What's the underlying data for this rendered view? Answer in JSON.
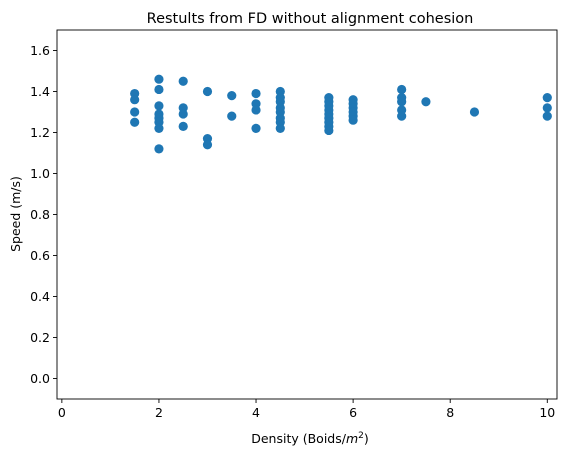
{
  "chart_data": {
    "type": "scatter",
    "title": "Restults from FD without alignment cohesion",
    "xlabel": "Density (Boids/",
    "xlabel_math": "m",
    "xlabel_sup": "2",
    "xlabel_end": ")",
    "ylabel": "Speed (m/s)",
    "xlim": [
      -0.1,
      10.2
    ],
    "ylim": [
      -0.1,
      1.7
    ],
    "xticks": [
      0,
      2,
      4,
      6,
      8,
      10
    ],
    "yticks": [
      0.0,
      0.2,
      0.4,
      0.6,
      0.8,
      1.0,
      1.2,
      1.4,
      1.6
    ],
    "xtick_labels": [
      "0",
      "2",
      "4",
      "6",
      "8",
      "10"
    ],
    "ytick_labels": [
      "0.0",
      "0.2",
      "0.4",
      "0.6",
      "0.8",
      "1.0",
      "1.2",
      "1.4",
      "1.6"
    ],
    "marker_color": "#1f77b4",
    "points": [
      {
        "x": 1.5,
        "y": 1.39
      },
      {
        "x": 1.5,
        "y": 1.36
      },
      {
        "x": 1.5,
        "y": 1.3
      },
      {
        "x": 1.5,
        "y": 1.25
      },
      {
        "x": 2.0,
        "y": 1.46
      },
      {
        "x": 2.0,
        "y": 1.41
      },
      {
        "x": 2.0,
        "y": 1.33
      },
      {
        "x": 2.0,
        "y": 1.29
      },
      {
        "x": 2.0,
        "y": 1.27
      },
      {
        "x": 2.0,
        "y": 1.25
      },
      {
        "x": 2.0,
        "y": 1.22
      },
      {
        "x": 2.0,
        "y": 1.12
      },
      {
        "x": 2.5,
        "y": 1.45
      },
      {
        "x": 2.5,
        "y": 1.32
      },
      {
        "x": 2.5,
        "y": 1.29
      },
      {
        "x": 2.5,
        "y": 1.23
      },
      {
        "x": 3.0,
        "y": 1.4
      },
      {
        "x": 3.0,
        "y": 1.17
      },
      {
        "x": 3.0,
        "y": 1.14
      },
      {
        "x": 3.5,
        "y": 1.38
      },
      {
        "x": 3.5,
        "y": 1.28
      },
      {
        "x": 4.0,
        "y": 1.39
      },
      {
        "x": 4.0,
        "y": 1.34
      },
      {
        "x": 4.0,
        "y": 1.31
      },
      {
        "x": 4.0,
        "y": 1.22
      },
      {
        "x": 4.5,
        "y": 1.4
      },
      {
        "x": 4.5,
        "y": 1.37
      },
      {
        "x": 4.5,
        "y": 1.35
      },
      {
        "x": 4.5,
        "y": 1.32
      },
      {
        "x": 4.5,
        "y": 1.3
      },
      {
        "x": 4.5,
        "y": 1.27
      },
      {
        "x": 4.5,
        "y": 1.25
      },
      {
        "x": 4.5,
        "y": 1.22
      },
      {
        "x": 5.5,
        "y": 1.37
      },
      {
        "x": 5.5,
        "y": 1.35
      },
      {
        "x": 5.5,
        "y": 1.33
      },
      {
        "x": 5.5,
        "y": 1.31
      },
      {
        "x": 5.5,
        "y": 1.29
      },
      {
        "x": 5.5,
        "y": 1.27
      },
      {
        "x": 5.5,
        "y": 1.25
      },
      {
        "x": 5.5,
        "y": 1.23
      },
      {
        "x": 5.5,
        "y": 1.21
      },
      {
        "x": 6.0,
        "y": 1.36
      },
      {
        "x": 6.0,
        "y": 1.34
      },
      {
        "x": 6.0,
        "y": 1.32
      },
      {
        "x": 6.0,
        "y": 1.3
      },
      {
        "x": 6.0,
        "y": 1.28
      },
      {
        "x": 6.0,
        "y": 1.26
      },
      {
        "x": 7.0,
        "y": 1.41
      },
      {
        "x": 7.0,
        "y": 1.37
      },
      {
        "x": 7.0,
        "y": 1.35
      },
      {
        "x": 7.0,
        "y": 1.31
      },
      {
        "x": 7.0,
        "y": 1.28
      },
      {
        "x": 7.5,
        "y": 1.35
      },
      {
        "x": 8.5,
        "y": 1.3
      },
      {
        "x": 10.0,
        "y": 1.37
      },
      {
        "x": 10.0,
        "y": 1.32
      },
      {
        "x": 10.0,
        "y": 1.28
      }
    ]
  }
}
